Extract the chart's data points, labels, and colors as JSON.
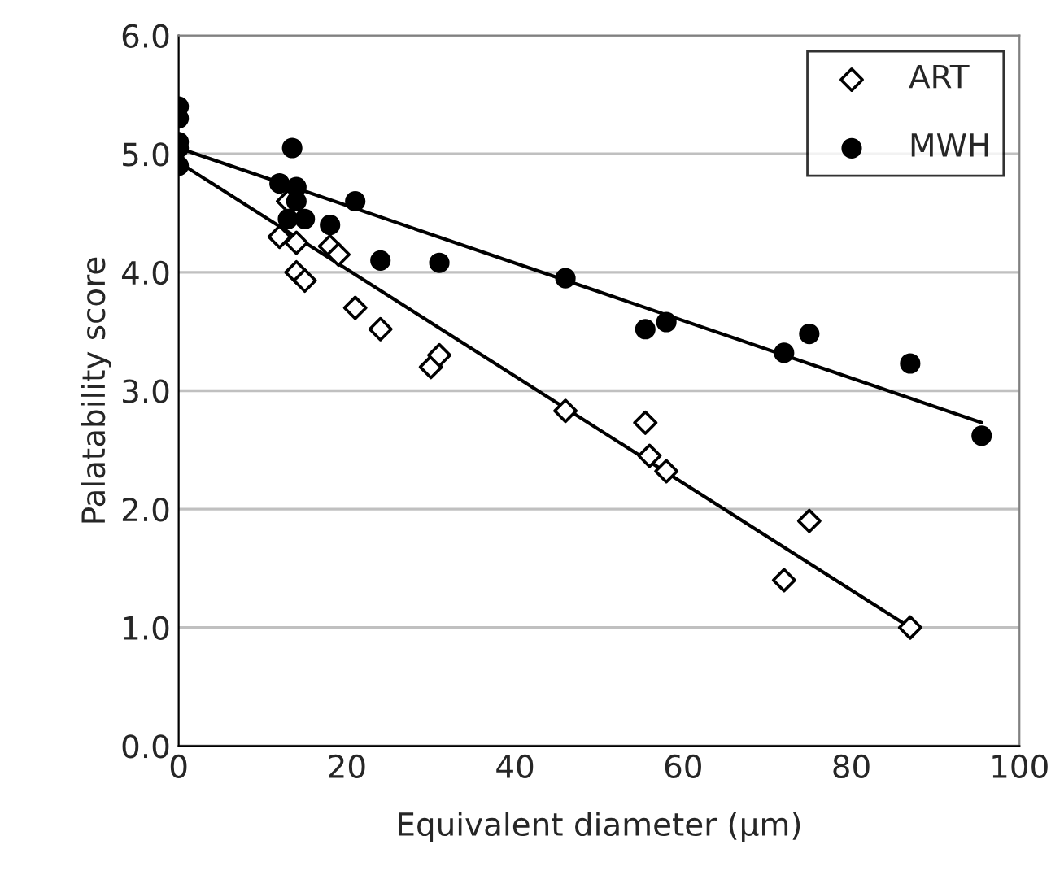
{
  "chart_data": {
    "type": "scatter",
    "xlabel": "Equivalent diameter (μm)",
    "ylabel": "Palatability score",
    "xlim": [
      0,
      100
    ],
    "ylim": [
      0,
      6
    ],
    "xticks": [
      0,
      20,
      40,
      60,
      80,
      100
    ],
    "yticks": [
      {
        "value": 0,
        "label": "0.0"
      },
      {
        "value": 1,
        "label": "1.0"
      },
      {
        "value": 2,
        "label": "2.0"
      },
      {
        "value": 3,
        "label": "3.0"
      },
      {
        "value": 4,
        "label": "4.0"
      },
      {
        "value": 5,
        "label": "5.0"
      },
      {
        "value": 6,
        "label": "6.0"
      }
    ],
    "grid": "y",
    "legend": "top right",
    "series": [
      {
        "name": "ART",
        "color": "#000000",
        "marker": "diamond",
        "x": [
          12,
          13,
          14,
          14,
          15,
          18,
          19,
          21,
          24,
          30,
          31,
          46,
          55.5,
          56,
          58,
          72,
          75,
          87
        ],
        "values": [
          4.3,
          4.6,
          4.25,
          4.0,
          3.93,
          4.22,
          4.15,
          3.7,
          3.52,
          3.2,
          3.3,
          2.83,
          2.73,
          2.45,
          2.32,
          1.4,
          1.9,
          1.0
        ]
      },
      {
        "name": "MWH",
        "color": "#000000",
        "marker": "circle",
        "x": [
          0,
          0,
          0,
          0,
          0,
          12,
          13,
          13.5,
          14,
          14,
          15,
          18,
          21,
          24,
          31,
          46,
          55.5,
          58,
          72,
          75,
          87,
          95.5
        ],
        "values": [
          5.4,
          5.3,
          5.1,
          5.05,
          4.9,
          4.75,
          4.45,
          5.05,
          4.72,
          4.6,
          4.45,
          4.4,
          4.6,
          4.1,
          4.08,
          3.95,
          3.52,
          3.58,
          3.32,
          3.48,
          3.23,
          2.62
        ]
      },
      {
        "type": "line",
        "color": "#000000",
        "x": [
          0,
          87
        ],
        "values": [
          4.93,
          1.0
        ]
      },
      {
        "type": "line",
        "color": "#000000",
        "x": [
          0,
          95.5
        ],
        "values": [
          5.05,
          2.73
        ]
      }
    ]
  }
}
